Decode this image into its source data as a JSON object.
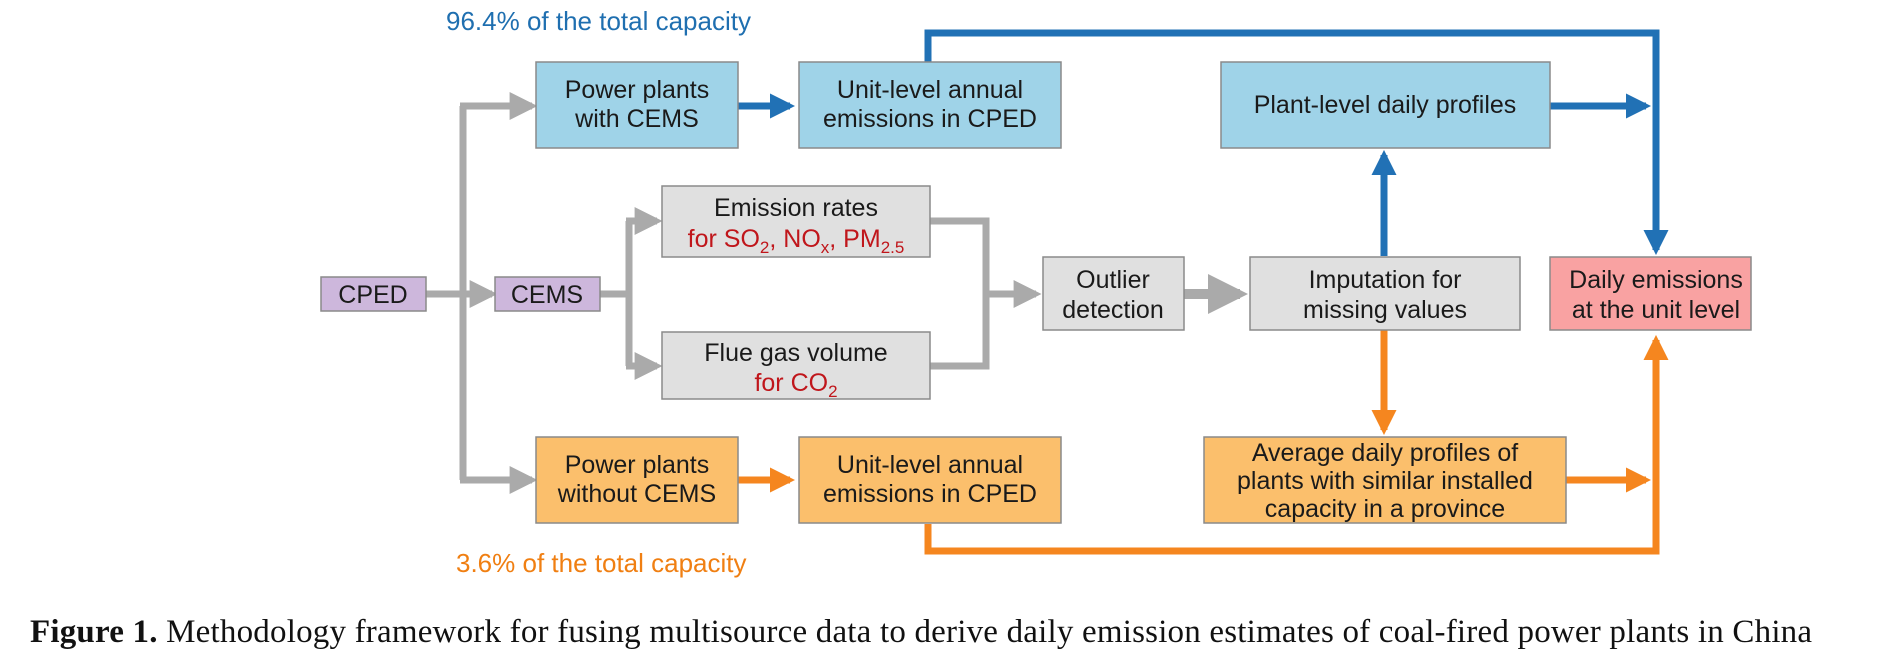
{
  "capacity_labels": {
    "cems_share": "96.4% of the total capacity",
    "non_cems_share": "3.6% of the total capacity"
  },
  "nodes": {
    "cped": "CPED",
    "cems": "CEMS",
    "pp_cems": [
      "Power plants",
      "with CEMS"
    ],
    "pp_no_cems": [
      "Power plants",
      "without CEMS"
    ],
    "unit_annual_top": [
      "Unit-level annual",
      "emissions in CPED"
    ],
    "unit_annual_bottom": [
      "Unit-level annual",
      "emissions in CPED"
    ],
    "emission_rates": {
      "title": "Emission rates",
      "pollutants_prefix": "for SO",
      "so2_sub": "2",
      "sep1": ", NO",
      "nox_sub": "x",
      "sep2": ", PM",
      "pm_sub": "2.5"
    },
    "flue_gas": {
      "title": "Flue gas volume",
      "pollutant_prefix": "for CO",
      "co2_sub": "2"
    },
    "outlier": [
      "Outlier",
      "detection"
    ],
    "imputation": [
      "Imputation for",
      "missing values"
    ],
    "plant_profiles": "Plant-level daily profiles",
    "avg_profiles": [
      "Average daily profiles of",
      "plants with similar installed",
      "capacity in a province"
    ],
    "daily_emissions": [
      "Daily emissions",
      "at the unit level"
    ]
  },
  "colors": {
    "blue_box": "#9fd3e8",
    "orange_box": "#fbbf6c",
    "gray_box": "#e0e0e0",
    "purple_box": "#cdb7dc",
    "pink_box": "#f9a2a2",
    "blue_arrow": "#2171b5",
    "orange_arrow": "#f5861f",
    "gray_arrow": "#aaaaaa",
    "red_text": "#c0161b"
  },
  "caption": {
    "label": "Figure 1.",
    "text": " Methodology framework for fusing multisource data to derive daily emission estimates of coal-fired power plants in China"
  }
}
